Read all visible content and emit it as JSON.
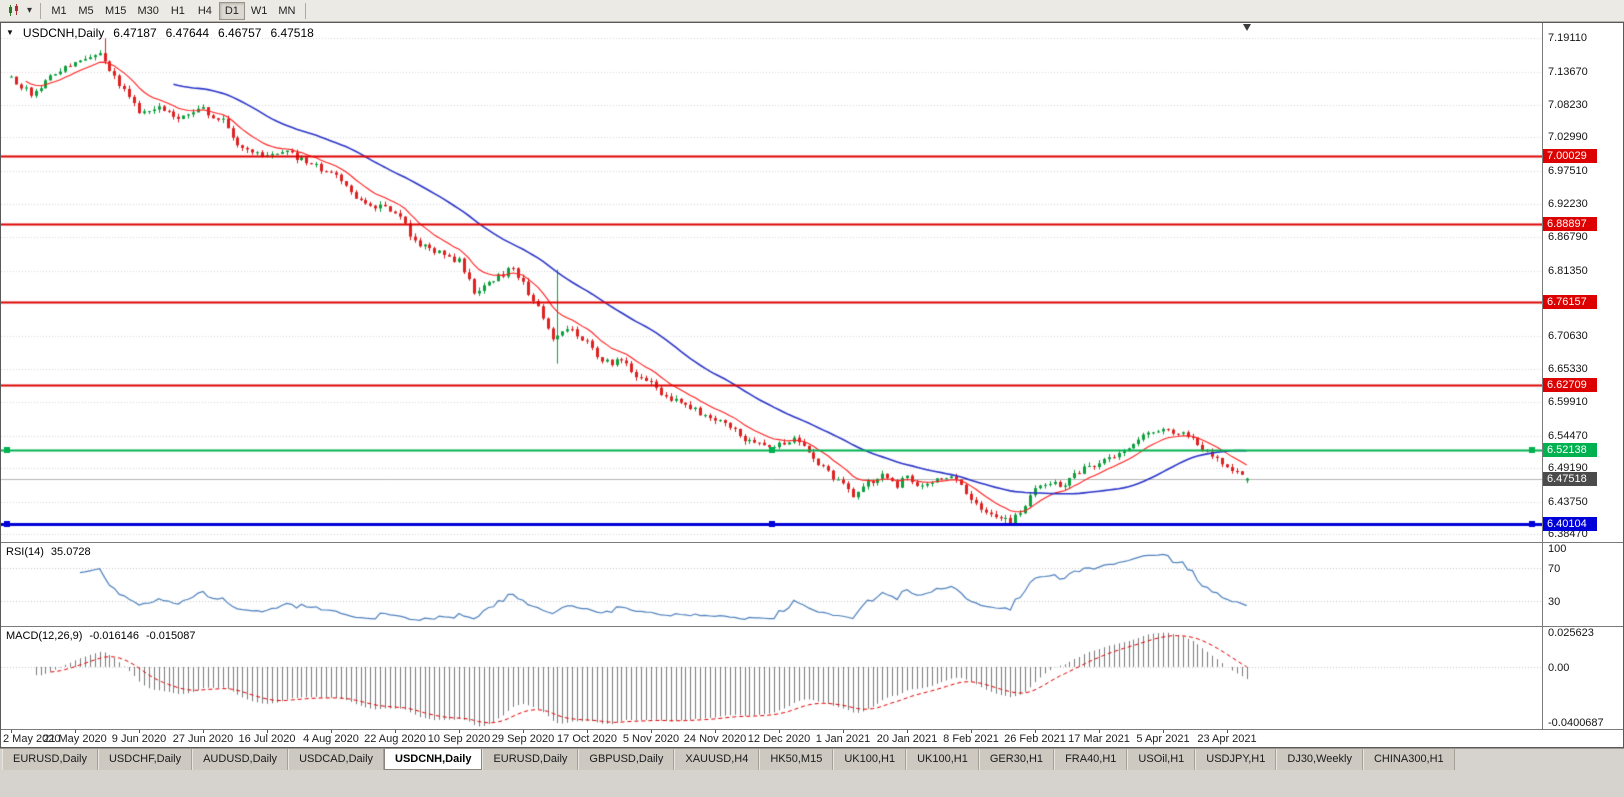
{
  "icons": {
    "collapse": "▼",
    "dropdown": "▾"
  },
  "toolbar": {
    "timeframes": [
      "M1",
      "M5",
      "M15",
      "M30",
      "H1",
      "H4",
      "D1",
      "W1",
      "MN"
    ],
    "active_timeframe": "D1"
  },
  "chart_header": {
    "symbol_title": "USDCNH,Daily",
    "open": "6.47187",
    "high": "6.47644",
    "low": "6.46757",
    "close": "6.47518"
  },
  "price_scale": {
    "tick_labels": [
      "7.19110",
      "7.13670",
      "7.08230",
      "7.02990",
      "6.97510",
      "6.92230",
      "6.86790",
      "6.81350",
      "6.70630",
      "6.65330",
      "6.59910",
      "6.54470",
      "6.49190",
      "6.43750",
      "6.38470"
    ]
  },
  "levels": [
    {
      "label": "7.00029",
      "value": 7.00029,
      "color": "#dd0000",
      "thickness": 2,
      "handles": false
    },
    {
      "label": "6.88897",
      "value": 6.88897,
      "color": "#dd0000",
      "thickness": 2,
      "handles": false
    },
    {
      "label": "6.76157",
      "value": 6.76157,
      "color": "#dd0000",
      "thickness": 2,
      "handles": false
    },
    {
      "label": "6.62709",
      "value": 6.62709,
      "color": "#dd0000",
      "thickness": 2,
      "handles": false
    },
    {
      "label": "6.52138",
      "value": 6.52138,
      "color": "#00b14f",
      "thickness": 2,
      "handles": true
    },
    {
      "label": "6.40104",
      "value": 6.40104,
      "color": "#0000d8",
      "thickness": 3,
      "handles": true
    }
  ],
  "current_price": {
    "label": "6.47518",
    "value": 6.47518,
    "badge_color": "#4b4b4b",
    "line_color": "#b5b5b5"
  },
  "rsi_panel": {
    "name": "RSI(14)",
    "value": "35.0728",
    "scale_labels": [
      {
        "text": "100",
        "value": 100
      },
      {
        "text": "70",
        "value": 70
      },
      {
        "text": "30",
        "value": 30
      }
    ],
    "level_lines": [
      70,
      30
    ],
    "line_color": "#4f81bd"
  },
  "macd_panel": {
    "name": "MACD(12,26,9)",
    "main_value": "-0.016146",
    "signal_value": "-0.015087",
    "scale_labels": [
      {
        "text": "0.025623",
        "value": 0.025623
      },
      {
        "text": "0.00",
        "value": 0
      },
      {
        "text": "-0.0400687",
        "value": -0.0400687
      }
    ],
    "histogram_color": "#7a7a7a",
    "signal_color": "#e00000"
  },
  "date_axis": {
    "labels": [
      "2 May 2020",
      "21 May 2020",
      "9 Jun 2020",
      "27 Jun 2020",
      "16 Jul 2020",
      "4 Aug 2020",
      "22 Aug 2020",
      "10 Sep 2020",
      "29 Sep 2020",
      "17 Oct 2020",
      "5 Nov 2020",
      "24 Nov 2020",
      "12 Dec 2020",
      "1 Jan 2021",
      "20 Jan 2021",
      "8 Feb 2021",
      "26 Feb 2021",
      "17 Mar 2021",
      "5 Apr 2021",
      "23 Apr 2021"
    ],
    "candles_per_label": 13
  },
  "tabs": {
    "items": [
      "EURUSD,Daily",
      "USDCHF,Daily",
      "AUDUSD,Daily",
      "USDCAD,Daily",
      "USDCNH,Daily",
      "EURUSD,Daily",
      "GBPUSD,Daily",
      "XAUUSD,H4",
      "HK50,M15",
      "UK100,H1",
      "UK100,H1",
      "GER30,H1",
      "FRA40,H1",
      "USOil,H1",
      "USDJPY,H1",
      "DJ30,Weekly",
      "CHINA300,H1"
    ],
    "active_index": 4
  },
  "chart_data": {
    "type": "candlestick",
    "symbol": "USDCNH",
    "period": "Daily",
    "visible_range": {
      "first_label": "2 May 2020",
      "last_label": "23 Apr 2021"
    },
    "price_axis": {
      "top": 7.216,
      "bottom": 6.372
    },
    "num_candles": 252,
    "last_candle": {
      "open": 6.47187,
      "high": 6.47644,
      "low": 6.46757,
      "close": 6.47518
    },
    "close_keypoints": [
      [
        0,
        7.128
      ],
      [
        4,
        7.1
      ],
      [
        9,
        7.135
      ],
      [
        13,
        7.152
      ],
      [
        17,
        7.168
      ],
      [
        19,
        7.155
      ],
      [
        22,
        7.115
      ],
      [
        26,
        7.072
      ],
      [
        30,
        7.082
      ],
      [
        34,
        7.062
      ],
      [
        39,
        7.075
      ],
      [
        43,
        7.055
      ],
      [
        47,
        7.01
      ],
      [
        52,
        6.998
      ],
      [
        56,
        7.006
      ],
      [
        60,
        6.988
      ],
      [
        65,
        6.972
      ],
      [
        69,
        6.94
      ],
      [
        73,
        6.922
      ],
      [
        78,
        6.908
      ],
      [
        82,
        6.862
      ],
      [
        86,
        6.845
      ],
      [
        91,
        6.828
      ],
      [
        94,
        6.78
      ],
      [
        98,
        6.8
      ],
      [
        102,
        6.818
      ],
      [
        104,
        6.792
      ],
      [
        107,
        6.75
      ],
      [
        110,
        6.705
      ],
      [
        113,
        6.72
      ],
      [
        117,
        6.7
      ],
      [
        120,
        6.662
      ],
      [
        124,
        6.668
      ],
      [
        127,
        6.645
      ],
      [
        130,
        6.628
      ],
      [
        133,
        6.608
      ],
      [
        136,
        6.6
      ],
      [
        139,
        6.586
      ],
      [
        143,
        6.574
      ],
      [
        146,
        6.556
      ],
      [
        150,
        6.535
      ],
      [
        153,
        6.528
      ],
      [
        156,
        6.53
      ],
      [
        159,
        6.543
      ],
      [
        162,
        6.52
      ],
      [
        165,
        6.492
      ],
      [
        169,
        6.462
      ],
      [
        171,
        6.448
      ],
      [
        174,
        6.468
      ],
      [
        177,
        6.478
      ],
      [
        180,
        6.464
      ],
      [
        182,
        6.478
      ],
      [
        185,
        6.462
      ],
      [
        188,
        6.472
      ],
      [
        191,
        6.478
      ],
      [
        195,
        6.445
      ],
      [
        198,
        6.422
      ],
      [
        201,
        6.412
      ],
      [
        203,
        6.402
      ],
      [
        206,
        6.435
      ],
      [
        208,
        6.458
      ],
      [
        211,
        6.468
      ],
      [
        214,
        6.463
      ],
      [
        217,
        6.487
      ],
      [
        221,
        6.5
      ],
      [
        224,
        6.508
      ],
      [
        227,
        6.525
      ],
      [
        230,
        6.542
      ],
      [
        233,
        6.556
      ],
      [
        236,
        6.552
      ],
      [
        239,
        6.545
      ],
      [
        242,
        6.525
      ],
      [
        245,
        6.505
      ],
      [
        247,
        6.492
      ],
      [
        249,
        6.482
      ],
      [
        251,
        6.47518
      ]
    ],
    "spikes": [
      [
        19,
        7.191,
        null
      ],
      [
        111,
        6.815,
        6.662
      ],
      [
        202,
        null,
        6.399
      ]
    ],
    "up_color": "#0e9f3e",
    "down_color": "#dd2222",
    "ma_fast": {
      "type": "EMA",
      "period": 10,
      "color": "#ff2020"
    },
    "ma_slow": {
      "type": "SMA",
      "period": 34,
      "color": "#2b35c8"
    },
    "indicators": [
      {
        "name": "RSI",
        "params": [
          14
        ],
        "current": 35.0728
      },
      {
        "name": "MACD",
        "params": [
          12,
          26,
          9
        ],
        "main": -0.016146,
        "signal": -0.015087
      }
    ],
    "horizontal_levels": [
      7.00029,
      6.88897,
      6.76157,
      6.62709,
      6.52138,
      6.40104
    ]
  }
}
